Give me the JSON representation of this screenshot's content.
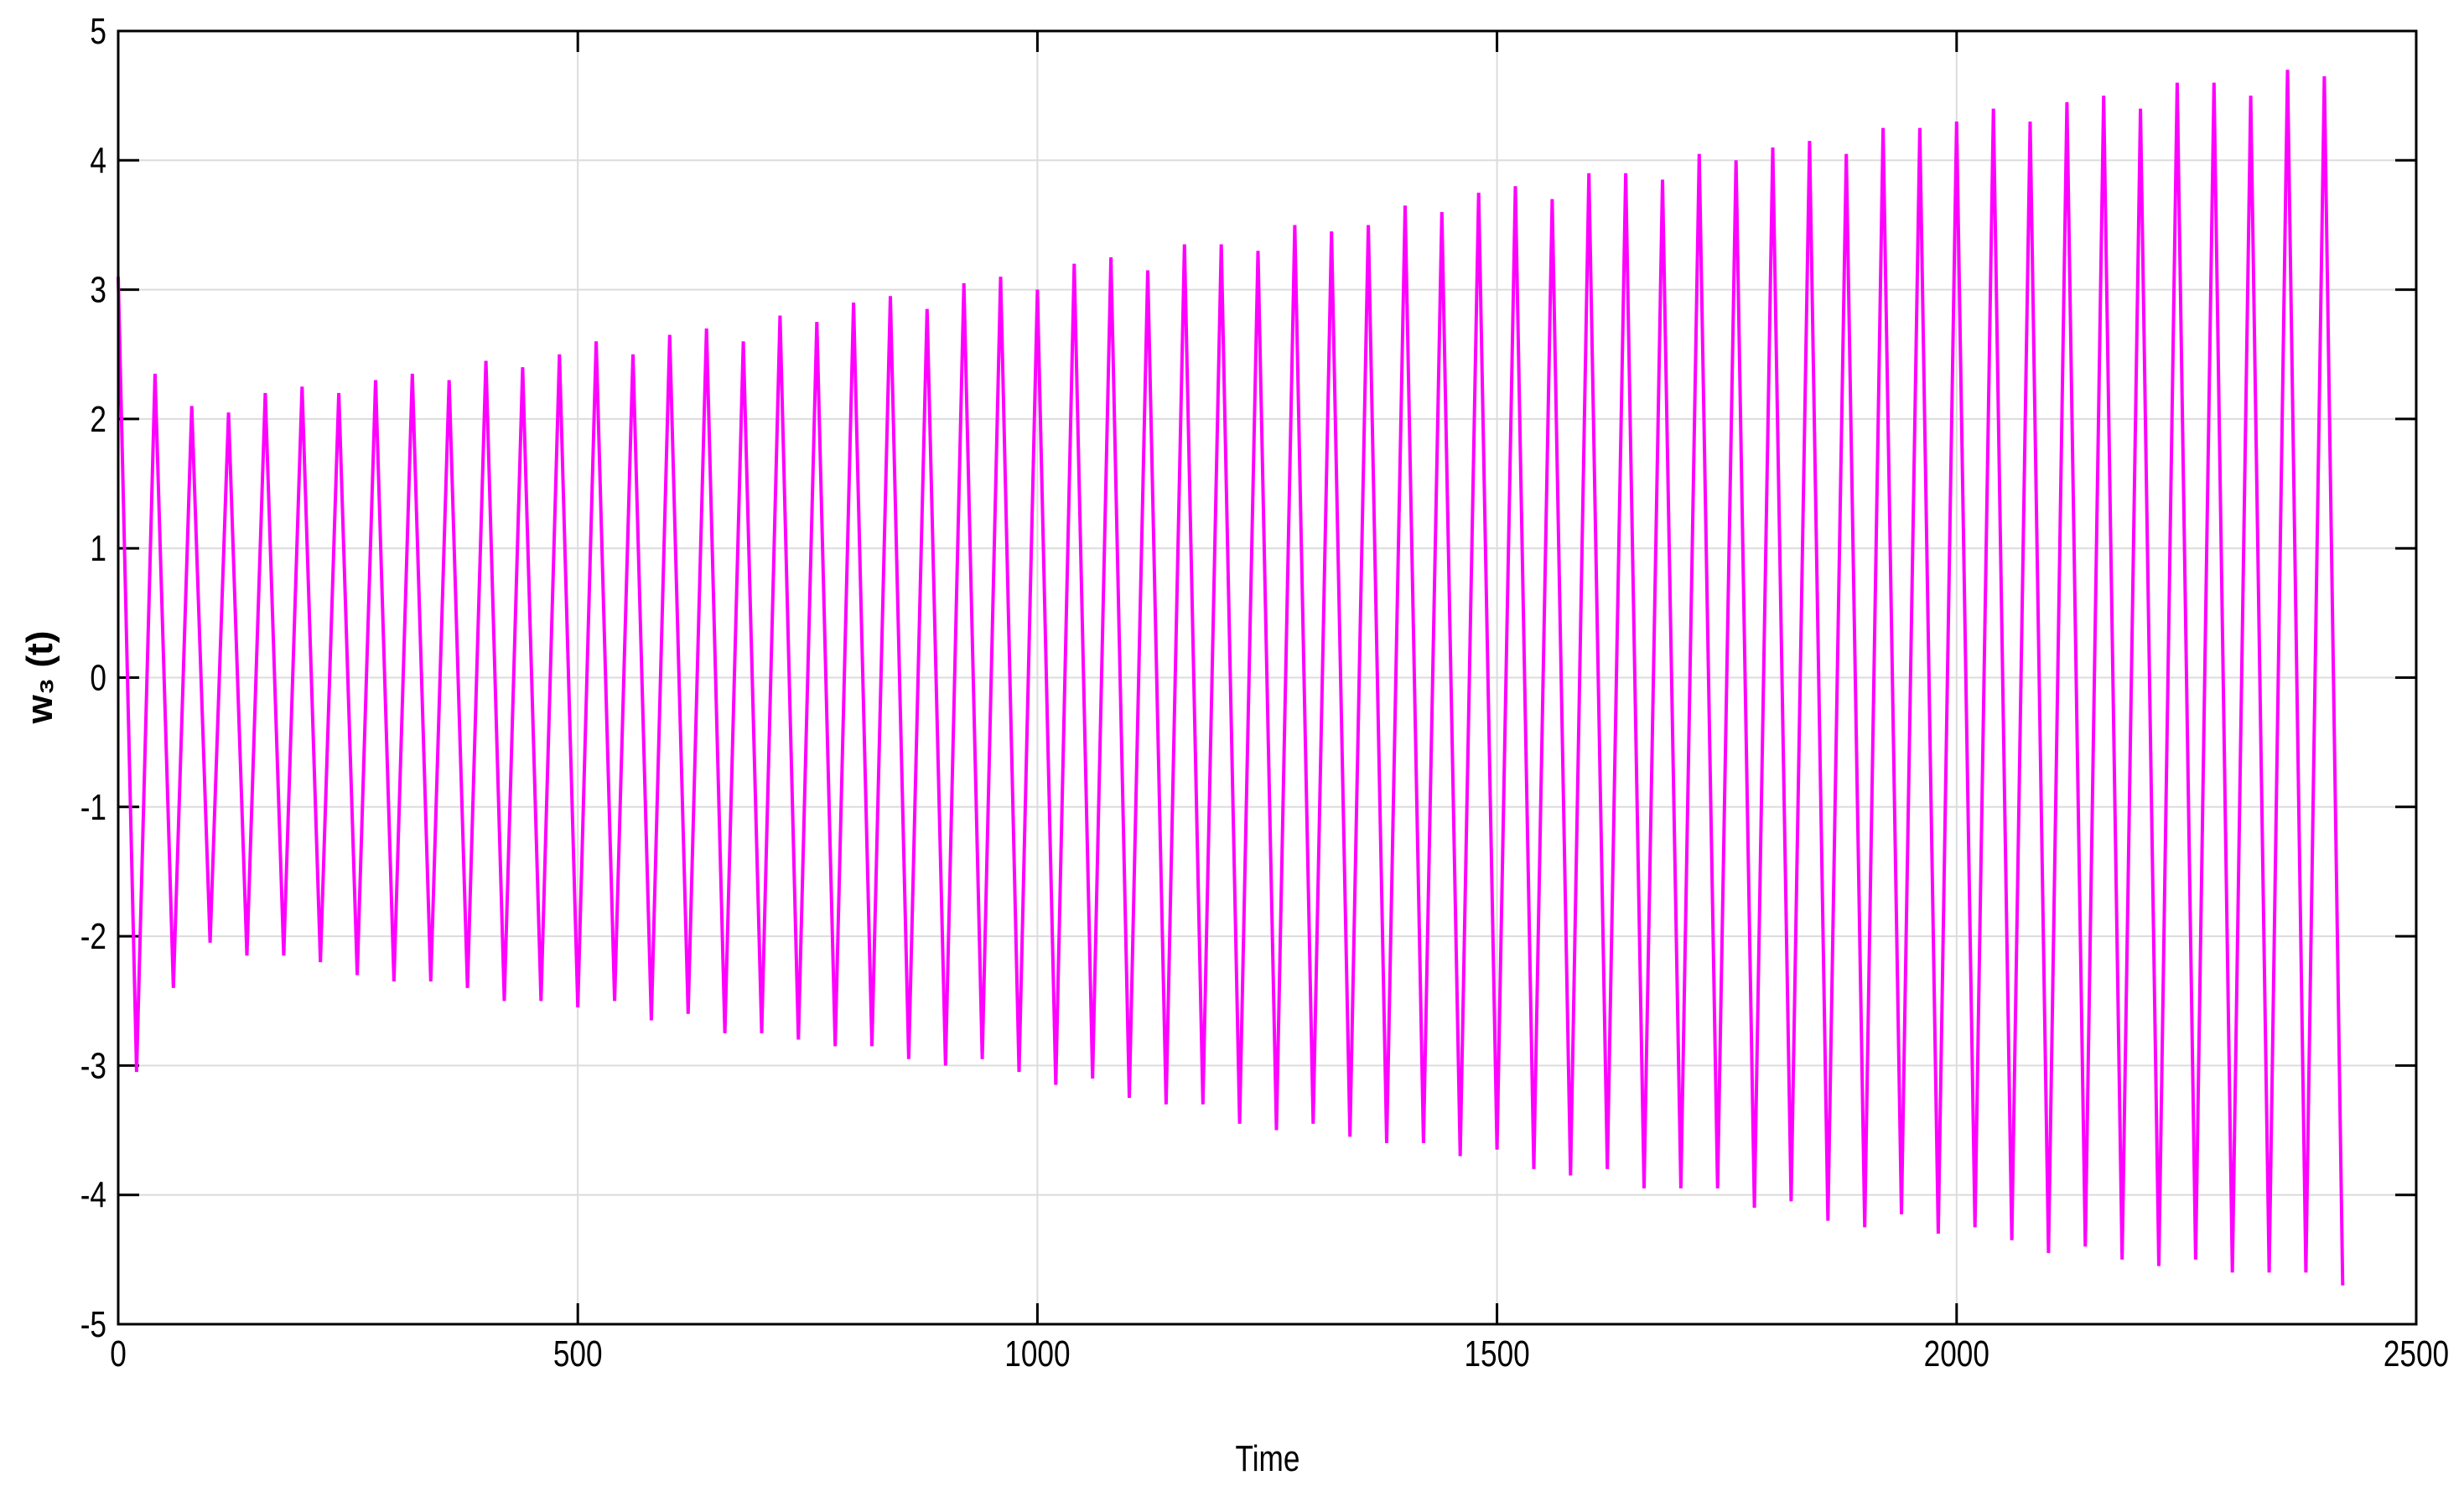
{
  "chart_data": {
    "type": "line",
    "xlabel": "Time",
    "ylabel": "w₃ (t)",
    "x": [
      0,
      20,
      40,
      60,
      80,
      100,
      120,
      140,
      160,
      180,
      200,
      220,
      240,
      260,
      280,
      300,
      320,
      340,
      360,
      380,
      400,
      420,
      440,
      460,
      480,
      500,
      520,
      540,
      560,
      580,
      600,
      620,
      640,
      660,
      680,
      700,
      720,
      740,
      760,
      780,
      800,
      820,
      840,
      860,
      880,
      900,
      920,
      940,
      960,
      980,
      1000,
      1020,
      1040,
      1060,
      1080,
      1100,
      1120,
      1140,
      1160,
      1180,
      1200,
      1220,
      1240,
      1260,
      1280,
      1300,
      1320,
      1340,
      1360,
      1380,
      1400,
      1420,
      1440,
      1460,
      1480,
      1500,
      1520,
      1540,
      1560,
      1580,
      1600,
      1620,
      1640,
      1660,
      1680,
      1700,
      1720,
      1740,
      1760,
      1780,
      1800,
      1820,
      1840,
      1860,
      1880,
      1900,
      1920,
      1940,
      1960,
      1980,
      2000,
      2020,
      2040,
      2060,
      2080,
      2100,
      2120,
      2140,
      2160,
      2180,
      2200,
      2220,
      2240,
      2260,
      2280,
      2300,
      2320,
      2340,
      2360,
      2380,
      2400,
      2420
    ],
    "series": [
      {
        "color": "#ff00ff",
        "values": [
          3.1,
          -3.05,
          2.35,
          -2.4,
          2.1,
          -2.05,
          2.05,
          -2.15,
          2.2,
          -2.15,
          2.25,
          -2.2,
          2.2,
          -2.3,
          2.3,
          -2.35,
          2.35,
          -2.35,
          2.3,
          -2.4,
          2.45,
          -2.5,
          2.4,
          -2.5,
          2.5,
          -2.55,
          2.6,
          -2.5,
          2.5,
          -2.65,
          2.65,
          -2.6,
          2.7,
          -2.75,
          2.6,
          -2.75,
          2.8,
          -2.8,
          2.75,
          -2.85,
          2.9,
          -2.85,
          2.95,
          -2.95,
          2.85,
          -3.0,
          3.05,
          -2.95,
          3.1,
          -3.05,
          3.0,
          -3.15,
          3.2,
          -3.1,
          3.25,
          -3.25,
          3.15,
          -3.3,
          3.35,
          -3.3,
          3.35,
          -3.45,
          3.3,
          -3.5,
          3.5,
          -3.45,
          3.45,
          -3.55,
          3.5,
          -3.6,
          3.65,
          -3.6,
          3.6,
          -3.7,
          3.75,
          -3.65,
          3.8,
          -3.8,
          3.7,
          -3.85,
          3.9,
          -3.8,
          3.9,
          -3.95,
          3.85,
          -3.95,
          4.05,
          -3.95,
          4.0,
          -4.1,
          4.1,
          -4.05,
          4.15,
          -4.2,
          4.05,
          -4.25,
          4.25,
          -4.15,
          4.25,
          -4.3,
          4.3,
          -4.25,
          4.4,
          -4.35,
          4.3,
          -4.45,
          4.45,
          -4.4,
          4.5,
          -4.5,
          4.4,
          -4.55,
          4.6,
          -4.5,
          4.6,
          -4.6,
          4.5,
          -4.6,
          4.7,
          -4.6,
          4.65,
          -4.7
        ]
      }
    ],
    "xlim": [
      0,
      2500
    ],
    "xticks": [
      0,
      500,
      1000,
      1500,
      2000,
      2500
    ],
    "ylim": [
      -5,
      5
    ],
    "yticks": [
      -5,
      -4,
      -3,
      -2,
      -1,
      0,
      1,
      2,
      3,
      4,
      5
    ],
    "grid": true
  }
}
